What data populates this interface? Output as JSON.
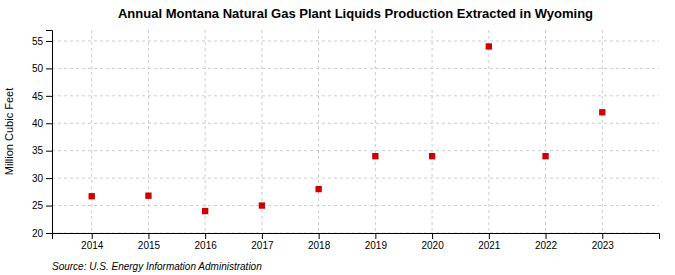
{
  "chart_data": {
    "type": "scatter",
    "title": "Annual Montana Natural Gas Plant Liquids Production Extracted in Wyoming",
    "ylabel": "Million Cubic Feet",
    "source": "Source: U.S. Energy Information Administration",
    "x": [
      2014,
      2015,
      2016,
      2017,
      2018,
      2019,
      2020,
      2021,
      2022,
      2023
    ],
    "values": [
      26.7,
      26.8,
      24.0,
      25.0,
      28.0,
      34.0,
      34.0,
      54.0,
      34.0,
      42.0
    ],
    "color": "#cc0000",
    "marker": "square",
    "xlim": [
      2013.3,
      2024.0
    ],
    "xticks": [
      2014,
      2015,
      2016,
      2017,
      2018,
      2019,
      2020,
      2021,
      2022,
      2023
    ],
    "ylim": [
      20,
      57
    ],
    "yticks": [
      20,
      25,
      30,
      35,
      40,
      45,
      50,
      55
    ],
    "grid": true
  }
}
